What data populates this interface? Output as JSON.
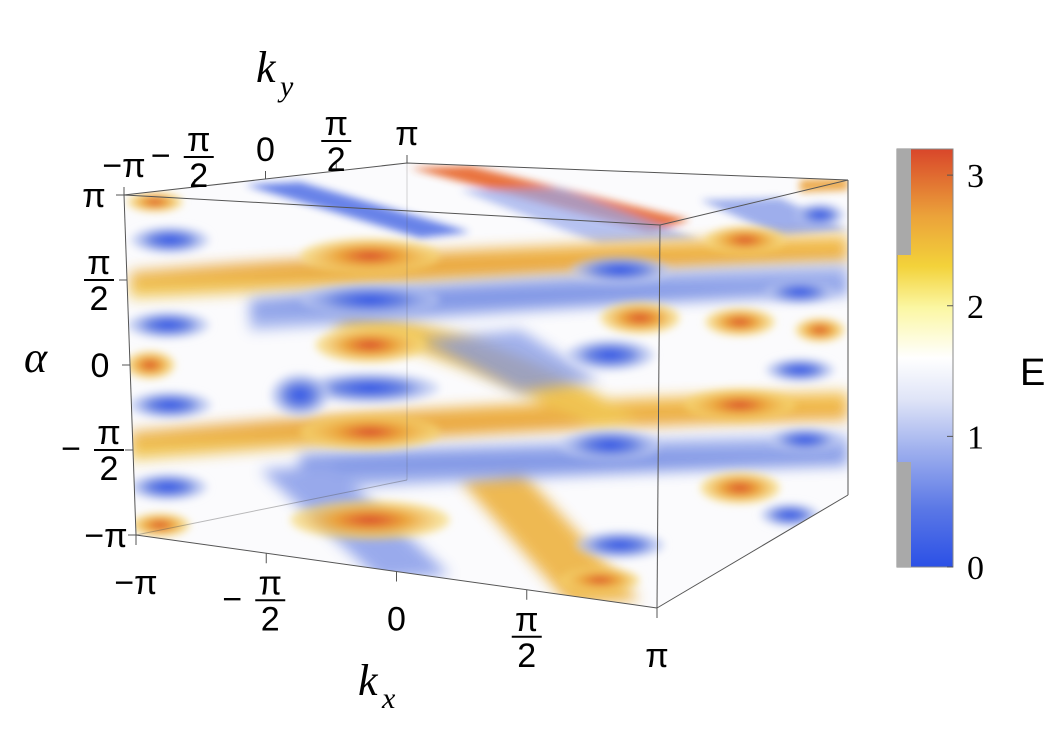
{
  "chart_data": {
    "type": "heatmap",
    "subtype": "3d-density-plot",
    "axes": {
      "x": {
        "symbol": "k",
        "subscript": "x",
        "range": [
          -3.14159,
          3.14159
        ],
        "ticks": [
          {
            "sign": "−",
            "main": "π"
          },
          {
            "sign": "−",
            "num": "π",
            "den": "2"
          },
          {
            "main": "0"
          },
          {
            "num": "π",
            "den": "2"
          },
          {
            "main": "π"
          }
        ]
      },
      "y": {
        "symbol": "k",
        "subscript": "y",
        "range": [
          -3.14159,
          3.14159
        ],
        "ticks": [
          {
            "sign": "−",
            "main": "π"
          },
          {
            "sign": "−",
            "num": "π",
            "den": "2"
          },
          {
            "main": "0"
          },
          {
            "num": "π",
            "den": "2"
          },
          {
            "main": "π"
          }
        ]
      },
      "z": {
        "symbol": "α",
        "range": [
          -3.14159,
          3.14159
        ],
        "ticks": [
          {
            "main": "π"
          },
          {
            "num": "π",
            "den": "2"
          },
          {
            "main": "0"
          },
          {
            "sign": "−",
            "num": "π",
            "den": "2"
          },
          {
            "sign": "−",
            "main": "π"
          }
        ]
      }
    },
    "colorbar": {
      "title": "E",
      "range": [
        0,
        3.2
      ],
      "ticks": [
        "0",
        "1",
        "2",
        "3"
      ],
      "colors": [
        "#2b50e6",
        "#7d93e6",
        "#c9d3f3",
        "#ffffff",
        "#fbf7a3",
        "#f3d23a",
        "#eba23a",
        "#d9462a"
      ],
      "hidden_range": [
        0.85,
        2.45
      ]
    },
    "features": {
      "description": "isosurface-like density of E over (kx, ky, alpha): high-E (orange/red) bands and low-E (blue) bands, middle values transparent"
    }
  }
}
